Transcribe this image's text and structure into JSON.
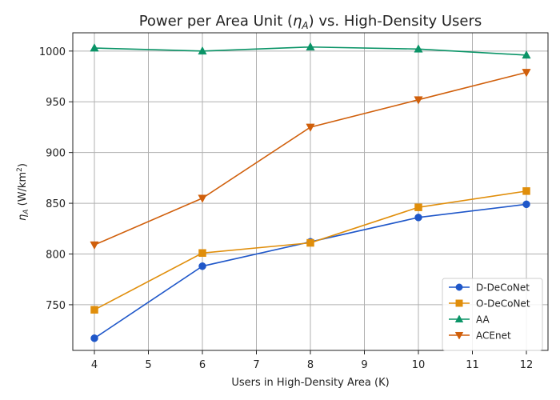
{
  "chart_data": {
    "type": "line",
    "title_prefix": "Power per Area Unit (",
    "title_symbol": "η",
    "title_sub": "A",
    "title_suffix": ") vs. High-Density Users",
    "xlabel": "Users in High-Density Area (K)",
    "ylabel_symbol": "η",
    "ylabel_sub": "A",
    "ylabel_unit_prefix": " (W/km",
    "ylabel_unit_sup": "2",
    "ylabel_unit_suffix": ")",
    "xlim": [
      3.6,
      12.4
    ],
    "ylim": [
      705,
      1018
    ],
    "xticks": [
      4,
      5,
      6,
      7,
      8,
      9,
      10,
      11,
      12
    ],
    "yticks": [
      750,
      800,
      850,
      900,
      950,
      1000
    ],
    "grid": true,
    "legend_position": "bottom-right",
    "x": [
      4,
      6,
      8,
      10,
      12
    ],
    "series": [
      {
        "name": "D-DeCoNet",
        "color": "#1f57c9",
        "marker": "circle",
        "values": [
          717,
          788,
          812,
          836,
          849
        ]
      },
      {
        "name": "O-DeCoNet",
        "color": "#e08e0b",
        "marker": "square",
        "values": [
          745,
          801,
          811,
          846,
          862
        ]
      },
      {
        "name": "AA",
        "color": "#0a9467",
        "marker": "triangle-up",
        "values": [
          1003,
          1000,
          1004,
          1002,
          996
        ]
      },
      {
        "name": "ACEnet",
        "color": "#d05f0b",
        "marker": "triangle-down",
        "values": [
          809,
          855,
          925,
          952,
          979
        ]
      }
    ]
  }
}
